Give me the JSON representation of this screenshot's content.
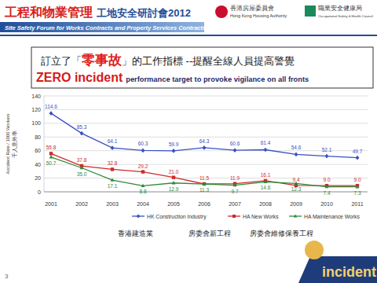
{
  "header": {
    "title_red": "工程和物業管理",
    "title_blue": "工地安全研討會2012",
    "subtitle": "Site Safety Forum for Works Contracts and Property Services Contracts",
    "logo_ha": "香港房屋委員會",
    "logo_ha_en": "Hong Kong Housing Authority",
    "logo_oshc": "職業安全健康局",
    "logo_oshc_en": "Occupational Safety & Health Council"
  },
  "headline": {
    "zh_before": "訂立了「",
    "zh_highlight": "零事故",
    "zh_after": "」的工作指標 --提醒全線人員提高警覺",
    "en_bold": "ZERO incident",
    "en_rest": "performance target to provoke vigilance on all fronts"
  },
  "chart_data": {
    "type": "line",
    "y_label": "Accident Rate / 1000 Workers",
    "y_label_zh": "千人意外率",
    "categories": [
      "2001",
      "2002",
      "2003",
      "2004",
      "2005",
      "2006",
      "2007",
      "2008",
      "2009",
      "2010",
      "2011"
    ],
    "series": [
      {
        "name": "HK Construction Industry",
        "color": "#3a4fc4",
        "marker": "diamond",
        "values": [
          114.6,
          85.3,
          64.1,
          60.3,
          59.9,
          64.3,
          60.6,
          61.4,
          54.6,
          52.1,
          49.7
        ],
        "value_labels": [
          "114.6",
          "85.3",
          "64.1",
          "60.3",
          "59.9",
          "64.3",
          "60.6",
          "61.4",
          "54.6",
          "52.1",
          "49.7"
        ]
      },
      {
        "name": "HA New Works",
        "color": "#cc2b2b",
        "marker": "square",
        "values": [
          55.8,
          37.8,
          32.8,
          29.2,
          21.0,
          11.5,
          11.9,
          16.1,
          9.4,
          9.0,
          9.0
        ],
        "value_labels": [
          "55.8",
          "37.8",
          "32.8",
          "29.2",
          "21.0",
          "11.5",
          "11.9",
          "16.1",
          "9.4",
          "9.0",
          "9.0"
        ]
      },
      {
        "name": "HA Maintenance Works",
        "color": "#2e8a3a",
        "marker": "triangle",
        "values": [
          50.7,
          35.0,
          17.1,
          8.8,
          12.9,
          11.3,
          9.7,
          14.6,
          12.3,
          7.4,
          7.3
        ],
        "value_labels": [
          "50.7",
          "35.0",
          "17.1",
          "8.8",
          "12.9",
          "11.3",
          "9.7",
          "14.6",
          "12.3",
          "7.4",
          "7.3"
        ]
      }
    ],
    "ylim": [
      0,
      140
    ],
    "yticks": [
      0,
      20,
      40,
      60,
      80,
      100,
      120,
      140
    ],
    "grid": true,
    "data_labels": true,
    "legend": "bottom",
    "legend_zh": [
      "香港建造業",
      "房委會新工程",
      "房委會維修保養工程"
    ]
  },
  "footer": {
    "page": "3",
    "badge": "incident"
  }
}
